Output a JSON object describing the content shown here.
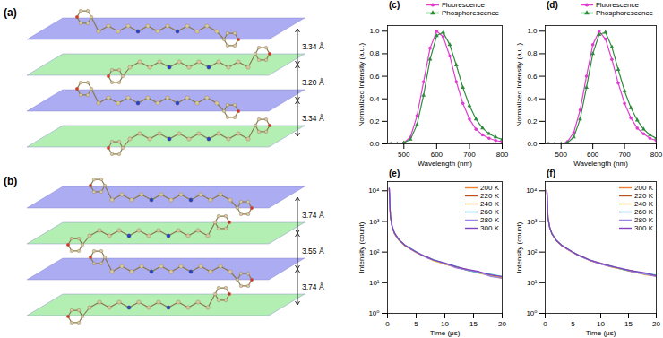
{
  "chart_data": [
    {
      "type": "line",
      "title": "(c)",
      "x_label": "Wavelength (nm)",
      "y_label": "Normalized Intensity (a.u.)",
      "x": [
        460,
        480,
        500,
        520,
        540,
        560,
        580,
        600,
        620,
        640,
        660,
        680,
        700,
        720,
        740,
        760,
        780,
        800
      ],
      "series": [
        {
          "name": "Fluorescence",
          "color": "#e03cd0",
          "marker": "circle",
          "values": [
            0.0,
            0.0,
            0.01,
            0.06,
            0.25,
            0.55,
            0.85,
            1.0,
            0.95,
            0.78,
            0.55,
            0.36,
            0.22,
            0.13,
            0.08,
            0.05,
            0.03,
            0.02
          ]
        },
        {
          "name": "Phosphorescence",
          "color": "#2e8b3e",
          "marker": "triangle",
          "values": [
            0.0,
            0.0,
            0.01,
            0.04,
            0.17,
            0.43,
            0.75,
            0.96,
            0.99,
            0.88,
            0.7,
            0.5,
            0.34,
            0.22,
            0.14,
            0.09,
            0.06,
            0.04
          ]
        }
      ],
      "xlim": [
        450,
        800
      ],
      "xticks": [
        500,
        600,
        700,
        800
      ],
      "ylim": [
        0,
        1.05
      ],
      "yticks": [
        {
          "value": 0,
          "label": "0.0"
        },
        {
          "value": 0.2,
          "label": "0.2"
        },
        {
          "value": 0.4,
          "label": "0.4"
        },
        {
          "value": 0.6,
          "label": "0.6"
        },
        {
          "value": 0.8,
          "label": "0.8"
        },
        {
          "value": 1,
          "label": "1.0"
        }
      ],
      "legend": "top-right"
    },
    {
      "type": "line",
      "title": "(d)",
      "x_label": "Wavelength (nm)",
      "y_label": "Normalized Intensity (a.u.)",
      "x": [
        460,
        480,
        500,
        520,
        540,
        560,
        580,
        600,
        620,
        640,
        660,
        680,
        700,
        720,
        740,
        760,
        780,
        800
      ],
      "series": [
        {
          "name": "Fluorescence",
          "color": "#e03cd0",
          "marker": "circle",
          "values": [
            0.0,
            0.0,
            0.0,
            0.02,
            0.1,
            0.3,
            0.6,
            0.88,
            1.0,
            0.93,
            0.75,
            0.54,
            0.36,
            0.23,
            0.14,
            0.09,
            0.05,
            0.03
          ]
        },
        {
          "name": "Phosphorescence",
          "color": "#2e8b3e",
          "marker": "triangle",
          "values": [
            0.0,
            0.0,
            0.0,
            0.01,
            0.06,
            0.22,
            0.5,
            0.8,
            0.97,
            0.99,
            0.86,
            0.66,
            0.47,
            0.32,
            0.21,
            0.13,
            0.08,
            0.05
          ]
        }
      ],
      "xlim": [
        450,
        800
      ],
      "xticks": [
        500,
        600,
        700,
        800
      ],
      "ylim": [
        0,
        1.05
      ],
      "yticks": [
        {
          "value": 0,
          "label": "0.0"
        },
        {
          "value": 0.2,
          "label": "0.2"
        },
        {
          "value": 0.4,
          "label": "0.4"
        },
        {
          "value": 0.6,
          "label": "0.6"
        },
        {
          "value": 0.8,
          "label": "0.8"
        },
        {
          "value": 1,
          "label": "1.0"
        }
      ],
      "legend": "top-right"
    },
    {
      "type": "line",
      "title": "(e)",
      "x_label": "Time (μs)",
      "y_label": "Intensity (count)",
      "log": "y",
      "x": [
        0.3,
        0.5,
        0.8,
        1.2,
        2,
        3,
        4,
        5,
        6,
        7,
        8,
        10,
        12,
        14,
        16,
        18,
        20
      ],
      "series": [
        {
          "name": "200 K",
          "color": "#f08030",
          "values": [
            12000,
            1500,
            700,
            420,
            250,
            170,
            130,
            100,
            80,
            66,
            56,
            42,
            33,
            26,
            21,
            18,
            15
          ]
        },
        {
          "name": "220 K",
          "color": "#c0501c",
          "values": [
            11500,
            1450,
            680,
            400,
            240,
            165,
            125,
            98,
            78,
            64,
            55,
            40,
            32,
            25,
            22,
            17,
            14
          ]
        },
        {
          "name": "240 K",
          "color": "#e8c020",
          "values": [
            11800,
            1480,
            690,
            410,
            245,
            160,
            128,
            96,
            81,
            65,
            52,
            41,
            31,
            27,
            20,
            17,
            15
          ]
        },
        {
          "name": "260 K",
          "color": "#40c8c0",
          "values": [
            12200,
            1520,
            710,
            430,
            255,
            172,
            132,
            102,
            79,
            67,
            57,
            43,
            34,
            25,
            21,
            19,
            16
          ]
        },
        {
          "name": "280 K",
          "color": "#9a80e8",
          "values": [
            11900,
            1490,
            695,
            415,
            248,
            168,
            126,
            99,
            82,
            63,
            54,
            42,
            30,
            26,
            22,
            16,
            14
          ]
        },
        {
          "name": "300 K",
          "color": "#8040c0",
          "values": [
            12100,
            1510,
            705,
            425,
            252,
            171,
            131,
            101,
            80,
            68,
            55,
            44,
            33,
            27,
            23,
            18,
            16
          ]
        }
      ],
      "xlim": [
        0,
        20
      ],
      "xticks": [
        0,
        5,
        10,
        15,
        20
      ],
      "ylim": [
        1,
        20000
      ],
      "yticks": [
        {
          "value": 1,
          "label": "10⁰"
        },
        {
          "value": 10,
          "label": "10¹"
        },
        {
          "value": 100,
          "label": "10²"
        },
        {
          "value": 1000,
          "label": "10³"
        },
        {
          "value": 10000,
          "label": "10⁴"
        }
      ],
      "legend": "top-right"
    },
    {
      "type": "line",
      "title": "(f)",
      "x_label": "Time (μs)",
      "y_label": "Intensity (count)",
      "log": "y",
      "x": [
        0.3,
        0.5,
        0.8,
        1.2,
        2,
        3,
        4,
        5,
        6,
        7,
        8,
        10,
        12,
        14,
        16,
        18,
        20
      ],
      "series": [
        {
          "name": "200 K",
          "color": "#f08030",
          "values": [
            10500,
            1300,
            650,
            400,
            240,
            165,
            125,
            98,
            78,
            65,
            55,
            42,
            34,
            28,
            23,
            20,
            17
          ]
        },
        {
          "name": "220 K",
          "color": "#c0501c",
          "values": [
            10200,
            1280,
            640,
            390,
            235,
            160,
            122,
            96,
            77,
            64,
            53,
            41,
            33,
            27,
            22,
            19,
            16
          ]
        },
        {
          "name": "240 K",
          "color": "#e8c020",
          "values": [
            10400,
            1310,
            655,
            405,
            238,
            163,
            126,
            95,
            79,
            66,
            54,
            43,
            32,
            28,
            24,
            18,
            17
          ]
        },
        {
          "name": "260 K",
          "color": "#40c8c0",
          "values": [
            10600,
            1320,
            660,
            410,
            245,
            168,
            128,
            100,
            80,
            63,
            56,
            42,
            35,
            27,
            23,
            20,
            18
          ]
        },
        {
          "name": "280 K",
          "color": "#9a80e8",
          "values": [
            10300,
            1290,
            645,
            395,
            242,
            162,
            124,
            97,
            76,
            65,
            54,
            40,
            33,
            29,
            22,
            19,
            16
          ]
        },
        {
          "name": "300 K",
          "color": "#8040c0",
          "values": [
            10500,
            1305,
            652,
            402,
            239,
            166,
            127,
            99,
            79,
            67,
            55,
            43,
            34,
            28,
            24,
            21,
            17
          ]
        }
      ],
      "xlim": [
        0,
        20
      ],
      "xticks": [
        0,
        5,
        10,
        15,
        20
      ],
      "ylim": [
        1,
        20000
      ],
      "yticks": [
        {
          "value": 1,
          "label": "10⁰"
        },
        {
          "value": 10,
          "label": "10¹"
        },
        {
          "value": 100,
          "label": "10²"
        },
        {
          "value": 1000,
          "label": "10³"
        },
        {
          "value": 10000,
          "label": "10⁴"
        }
      ],
      "legend": "top-right"
    }
  ],
  "diagrams": [
    {
      "label": "(a)",
      "spacings": [
        "3.34 Å",
        "3.20 Å",
        "3.34 Å"
      ]
    },
    {
      "label": "(b)",
      "spacings": [
        "3.74 Å",
        "3.55 Å",
        "3.74 Å"
      ]
    }
  ]
}
